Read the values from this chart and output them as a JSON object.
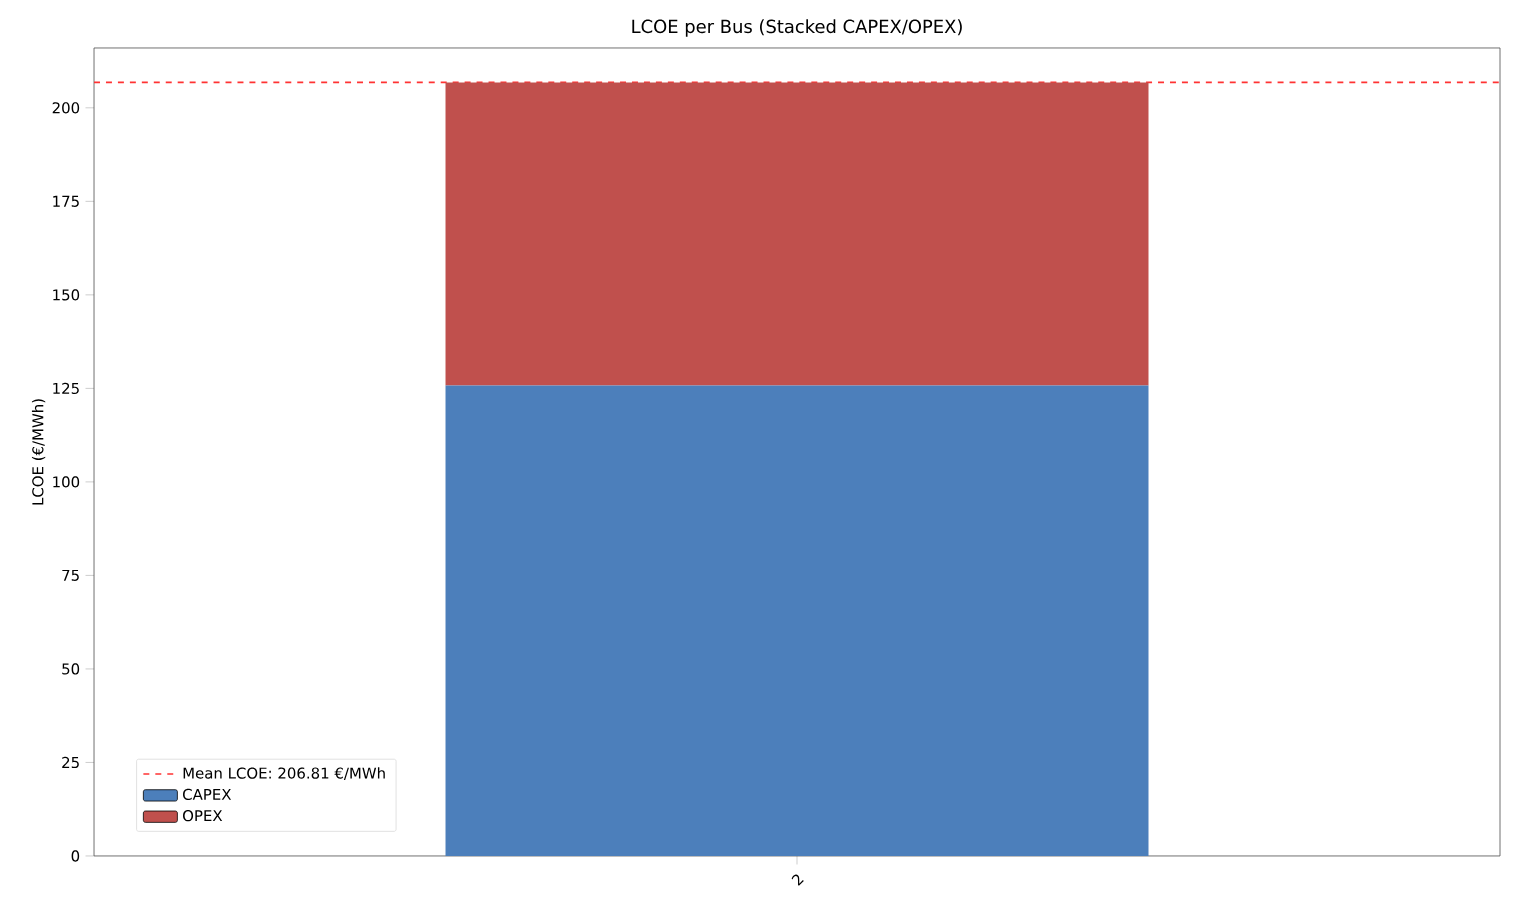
{
  "chart_data": {
    "type": "bar",
    "title": "LCOE per Bus (Stacked CAPEX/OPEX)",
    "ylabel": "LCOE (€/MWh)",
    "categories": [
      "2"
    ],
    "stacked": true,
    "series": [
      {
        "name": "CAPEX",
        "color": "#4c7fbb",
        "values": [
          125.8
        ]
      },
      {
        "name": "OPEX",
        "color": "#c0504d",
        "values": [
          81.0
        ]
      }
    ],
    "ylim": [
      0,
      216
    ],
    "yticks": [
      0,
      25,
      50,
      75,
      100,
      125,
      150,
      175,
      200
    ],
    "ref_lines": [
      {
        "axis": "y",
        "value": 206.81,
        "label": "Mean LCOE: 206.81 €/MWh",
        "color": "#ff3333",
        "line_style": "dashed"
      }
    ],
    "legend": "bottom left",
    "grid": false
  }
}
